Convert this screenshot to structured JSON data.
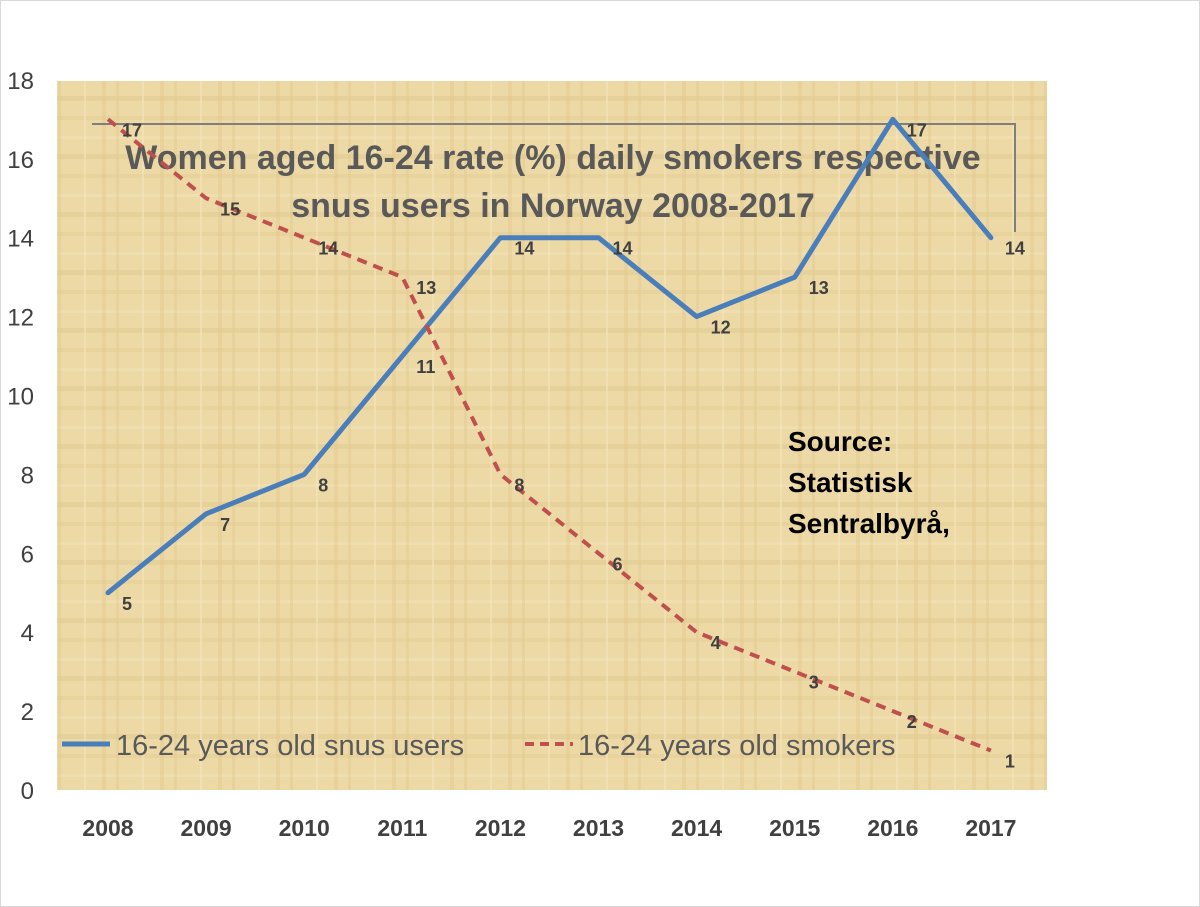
{
  "chart_data": {
    "type": "line",
    "title": "Women aged 16-24 rate (%) daily smokers respective snus users in Norway 2008-2017",
    "title_lines": [
      "Women aged 16-24 rate (%) daily smokers respective",
      "snus users in Norway 2008-2017"
    ],
    "categories": [
      "2008",
      "2009",
      "2010",
      "2011",
      "2012",
      "2013",
      "2014",
      "2015",
      "2016",
      "2017"
    ],
    "series": [
      {
        "name": "16-24 years old snus users",
        "values": [
          5,
          7,
          8,
          11,
          14,
          14,
          12,
          13,
          17,
          14
        ],
        "color": "#4a7ebb",
        "style": "solid"
      },
      {
        "name": "16-24 years old smokers",
        "values": [
          17,
          15,
          14,
          13,
          8,
          6,
          4,
          3,
          2,
          1
        ],
        "color": "#c0504d",
        "style": "dashed"
      }
    ],
    "y_ticks": [
      "0",
      "2",
      "4",
      "6",
      "8",
      "10",
      "12",
      "14",
      "16",
      "18"
    ],
    "ylim": [
      0,
      18
    ],
    "xlabel": "",
    "ylabel": "",
    "legend_position": "bottom-left",
    "grid": false,
    "annotation": [
      "Source:",
      "Statistisk",
      "Sentralbyrå,"
    ],
    "colors": {
      "plot_background": "#ecd9a6",
      "title": "#595959",
      "axis_text": "#404040",
      "annotation": "#000000"
    }
  }
}
